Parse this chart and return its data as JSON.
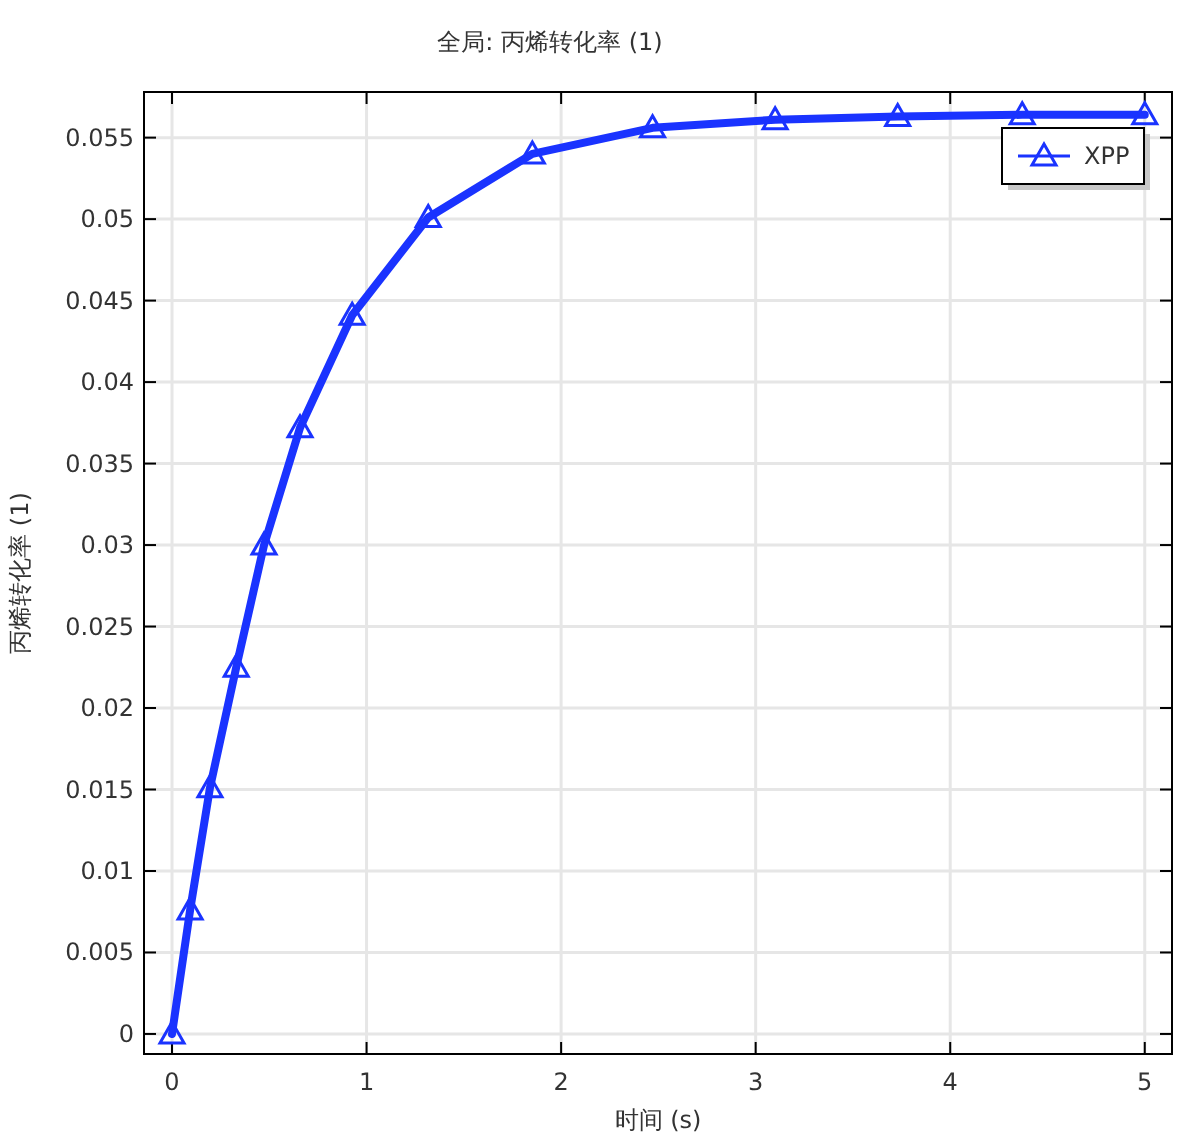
{
  "chart_data": {
    "type": "line",
    "title": "全局: 丙烯转化率 (1)",
    "xlabel": "时间 (s)",
    "ylabel": "丙烯转化率 (1)",
    "xlim": [
      -0.144,
      5.14
    ],
    "ylim": [
      -0.00123,
      0.0578
    ],
    "xticks": [
      0,
      1,
      2,
      3,
      4,
      5
    ],
    "yticks": [
      0,
      0.005,
      0.01,
      0.015,
      0.02,
      0.025,
      0.03,
      0.035,
      0.04,
      0.045,
      0.05,
      0.055
    ],
    "grid": true,
    "legend": "top right",
    "marker": "triangle",
    "line_style": "solid",
    "series": [
      {
        "name": "XPP",
        "color": "#1a33ff",
        "x": [
          0,
          0.093,
          0.195,
          0.33,
          0.473,
          0.658,
          0.926,
          1.317,
          1.852,
          2.47,
          3.1,
          3.73,
          4.37,
          5
        ],
        "values": [
          0,
          0.0076,
          0.0151,
          0.0225,
          0.03,
          0.0372,
          0.0441,
          0.0501,
          0.054,
          0.0556,
          0.0561,
          0.0563,
          0.0564,
          0.0564
        ]
      }
    ]
  }
}
